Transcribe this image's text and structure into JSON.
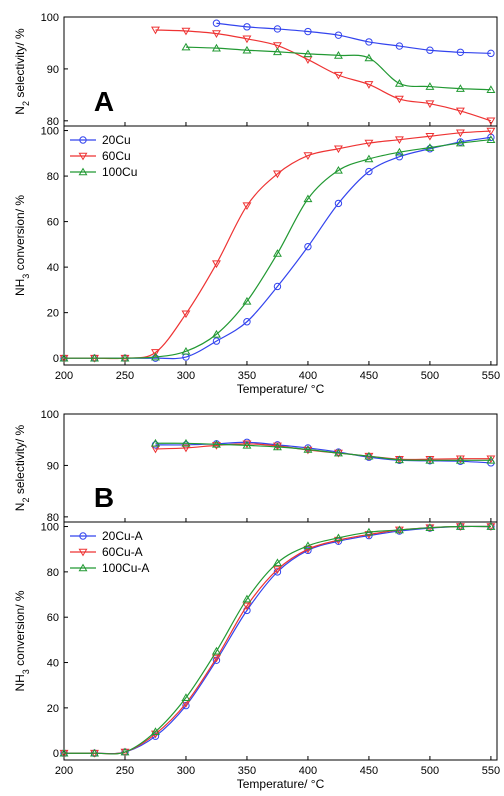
{
  "chart_data": [
    {
      "panel": "A",
      "type": "line",
      "ylabel_parts": [
        "N",
        "2",
        " selectivity/ %"
      ],
      "ylim": [
        79,
        100
      ],
      "yticks": [
        80,
        90,
        100
      ],
      "xlim": [
        200,
        555
      ],
      "panel_label": "A",
      "legend": "none",
      "series": [
        {
          "name": "20Cu",
          "color": "#3344ee",
          "marker": "circle",
          "x": [
            325,
            350,
            375,
            400,
            425,
            450,
            475,
            500,
            525,
            550
          ],
          "y": [
            98.8,
            98.1,
            97.7,
            97.2,
            96.5,
            95.2,
            94.4,
            93.6,
            93.2,
            93.0
          ]
        },
        {
          "name": "60Cu",
          "color": "#ee3333",
          "marker": "triangle-down",
          "x": [
            275,
            300,
            325,
            350,
            375,
            400,
            425,
            450,
            475,
            500,
            525,
            550
          ],
          "y": [
            97.5,
            97.3,
            96.8,
            95.8,
            94.5,
            91.8,
            88.8,
            87.0,
            84.2,
            83.3,
            81.9,
            80.0
          ]
        },
        {
          "name": "100Cu",
          "color": "#229933",
          "marker": "triangle-up",
          "x": [
            300,
            325,
            350,
            375,
            400,
            425,
            450,
            475,
            500,
            525,
            550
          ],
          "y": [
            94.2,
            94.0,
            93.6,
            93.3,
            92.9,
            92.6,
            92.1,
            87.2,
            86.6,
            86.2,
            86.0
          ]
        }
      ]
    },
    {
      "panel": "A",
      "type": "line",
      "ylabel_parts": [
        "NH",
        "3",
        " conversion/ %"
      ],
      "xlabel": "Temperature/ °C",
      "ylim": [
        -3,
        102
      ],
      "yticks": [
        0,
        20,
        40,
        60,
        80,
        100
      ],
      "xlim": [
        200,
        555
      ],
      "xticks": [
        200,
        250,
        300,
        350,
        400,
        450,
        500,
        550
      ],
      "legend": "top-left",
      "series": [
        {
          "name": "20Cu",
          "color": "#3344ee",
          "marker": "circle",
          "x": [
            200,
            225,
            250,
            275,
            300,
            325,
            350,
            375,
            400,
            425,
            450,
            475,
            500,
            525,
            550
          ],
          "y": [
            0,
            0,
            0,
            0,
            0.5,
            7.5,
            16,
            31.5,
            49,
            68,
            82,
            88.5,
            92,
            95,
            97
          ]
        },
        {
          "name": "60Cu",
          "color": "#ee3333",
          "marker": "triangle-down",
          "x": [
            200,
            225,
            250,
            275,
            300,
            325,
            350,
            375,
            400,
            425,
            450,
            475,
            500,
            525,
            550
          ],
          "y": [
            0,
            0,
            0,
            2.5,
            19.5,
            41.5,
            67,
            81,
            89,
            92,
            94.5,
            96,
            97.5,
            99,
            99.8
          ]
        },
        {
          "name": "100Cu",
          "color": "#229933",
          "marker": "triangle-up",
          "x": [
            200,
            225,
            250,
            275,
            300,
            325,
            350,
            375,
            400,
            425,
            450,
            475,
            500,
            525,
            550
          ],
          "y": [
            0,
            0,
            0,
            0.5,
            3,
            10.5,
            25,
            46,
            70,
            82.5,
            87.5,
            90.5,
            92.5,
            94.5,
            96
          ]
        }
      ]
    },
    {
      "panel": "B",
      "type": "line",
      "ylabel_parts": [
        "N",
        "2",
        " selectivity/ %"
      ],
      "ylim": [
        79,
        100
      ],
      "yticks": [
        80,
        90,
        100
      ],
      "xlim": [
        200,
        555
      ],
      "panel_label": "B",
      "legend": "none",
      "series": [
        {
          "name": "20Cu-A",
          "color": "#3344ee",
          "marker": "circle",
          "x": [
            275,
            300,
            325,
            350,
            375,
            400,
            425,
            450,
            475,
            500,
            525,
            550
          ],
          "y": [
            94.0,
            94.0,
            94.2,
            94.5,
            94.0,
            93.4,
            92.6,
            91.6,
            91.0,
            90.9,
            90.8,
            90.5
          ]
        },
        {
          "name": "60Cu-A",
          "color": "#ee3333",
          "marker": "triangle-down",
          "x": [
            275,
            300,
            325,
            350,
            375,
            400,
            425,
            450,
            475,
            500,
            525,
            550
          ],
          "y": [
            93.2,
            93.4,
            93.9,
            94.2,
            93.8,
            93.0,
            92.4,
            91.8,
            91.2,
            91.2,
            91.3,
            91.3
          ]
        },
        {
          "name": "100Cu-A",
          "color": "#229933",
          "marker": "triangle-up",
          "x": [
            275,
            300,
            325,
            350,
            375,
            400,
            425,
            450,
            475,
            500,
            525,
            550
          ],
          "y": [
            94.3,
            94.3,
            94.1,
            93.9,
            93.6,
            93.1,
            92.4,
            91.8,
            91.1,
            91.0,
            91.0,
            91.0
          ]
        }
      ]
    },
    {
      "panel": "B",
      "type": "line",
      "ylabel_parts": [
        "NH",
        "3",
        " conversion/ %"
      ],
      "xlabel": "Temperature/ °C",
      "ylim": [
        -3,
        102
      ],
      "yticks": [
        0,
        20,
        40,
        60,
        80,
        100
      ],
      "xlim": [
        200,
        555
      ],
      "xticks": [
        200,
        250,
        300,
        350,
        400,
        450,
        500,
        550
      ],
      "legend": "top-left",
      "series": [
        {
          "name": "20Cu-A",
          "color": "#3344ee",
          "marker": "circle",
          "x": [
            200,
            225,
            250,
            275,
            300,
            325,
            350,
            375,
            400,
            425,
            450,
            475,
            500,
            525,
            550
          ],
          "y": [
            0,
            0,
            0.5,
            7.5,
            21,
            41,
            63,
            80,
            89.5,
            93.5,
            96,
            98,
            99.3,
            100,
            100
          ]
        },
        {
          "name": "60Cu-A",
          "color": "#ee3333",
          "marker": "triangle-down",
          "x": [
            200,
            225,
            250,
            275,
            300,
            325,
            350,
            375,
            400,
            425,
            450,
            475,
            500,
            525,
            550
          ],
          "y": [
            0,
            0,
            0.5,
            8.5,
            22,
            42,
            65,
            81,
            90,
            94,
            96.5,
            98.5,
            99.5,
            100,
            100
          ]
        },
        {
          "name": "100Cu-A",
          "color": "#229933",
          "marker": "triangle-up",
          "x": [
            200,
            225,
            250,
            275,
            300,
            325,
            350,
            375,
            400,
            425,
            450,
            475,
            500,
            525,
            550
          ],
          "y": [
            0,
            0,
            0.5,
            9.5,
            24.5,
            45,
            68,
            84,
            91.5,
            95,
            97.5,
            98.5,
            99.5,
            100,
            100
          ]
        }
      ]
    }
  ]
}
